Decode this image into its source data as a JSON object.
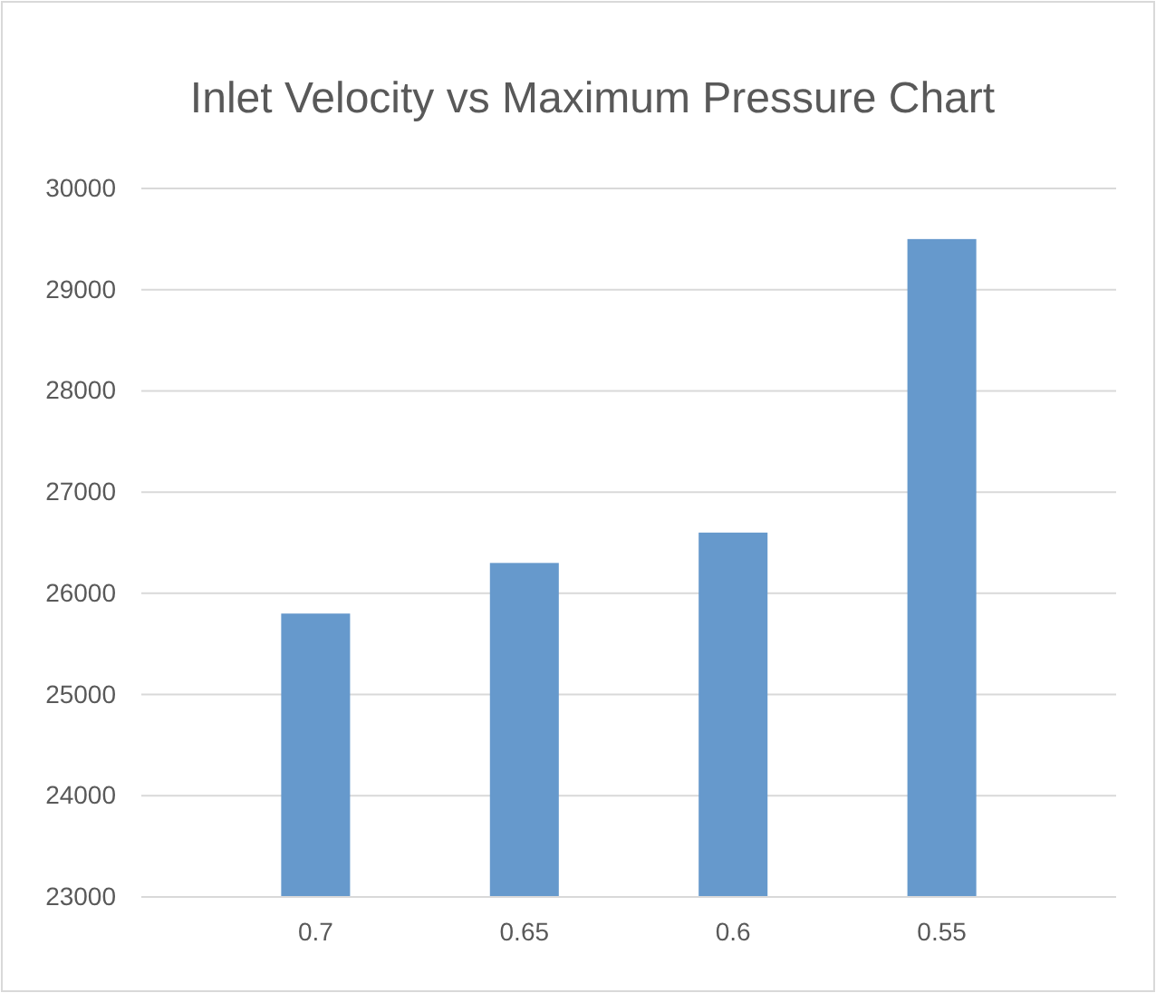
{
  "chart_data": {
    "type": "bar",
    "title": "Inlet Velocity vs Maximum Pressure Chart",
    "categories": [
      "0.7",
      "0.65",
      "0.6",
      "0.55"
    ],
    "values": [
      25800,
      26300,
      26600,
      29500
    ],
    "color": "#6699cc",
    "ylim": [
      23000,
      30000
    ],
    "yticks": [
      23000,
      24000,
      25000,
      26000,
      27000,
      28000,
      29000,
      30000
    ],
    "grid": "y"
  }
}
